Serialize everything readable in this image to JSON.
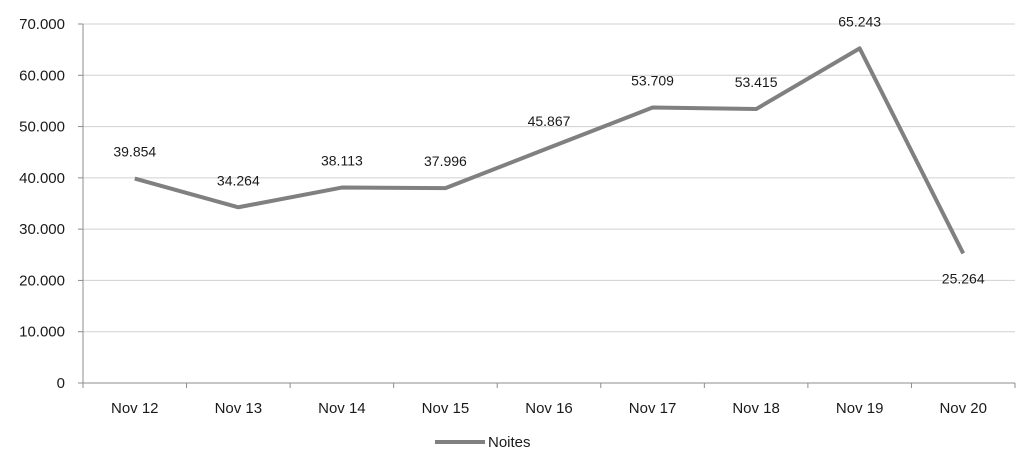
{
  "chart_data": {
    "type": "line",
    "title": "",
    "xlabel": "",
    "ylabel": "",
    "categories": [
      "Nov 12",
      "Nov 13",
      "Nov 14",
      "Nov 15",
      "Nov 16",
      "Nov 17",
      "Nov 18",
      "Nov 19",
      "Nov 20"
    ],
    "series": [
      {
        "name": "Noites",
        "values": [
          39854,
          34264,
          38113,
          37996,
          45867,
          53709,
          53415,
          65243,
          25264
        ],
        "labels": [
          "39.854",
          "34.264",
          "38.113",
          "37.996",
          "45.867",
          "53.709",
          "53.415",
          "65.243",
          "25.264"
        ],
        "color": "#808080"
      }
    ],
    "ylim": [
      0,
      70000
    ],
    "y_ticks": [
      0,
      10000,
      20000,
      30000,
      40000,
      50000,
      60000,
      70000
    ],
    "y_tick_labels": [
      "0",
      "10.000",
      "20.000",
      "30.000",
      "40.000",
      "50.000",
      "60.000",
      "70.000"
    ],
    "grid": true,
    "grid_color": "#d0d0d0",
    "axis_color": "#8c8c8c",
    "legend_position": "bottom"
  }
}
